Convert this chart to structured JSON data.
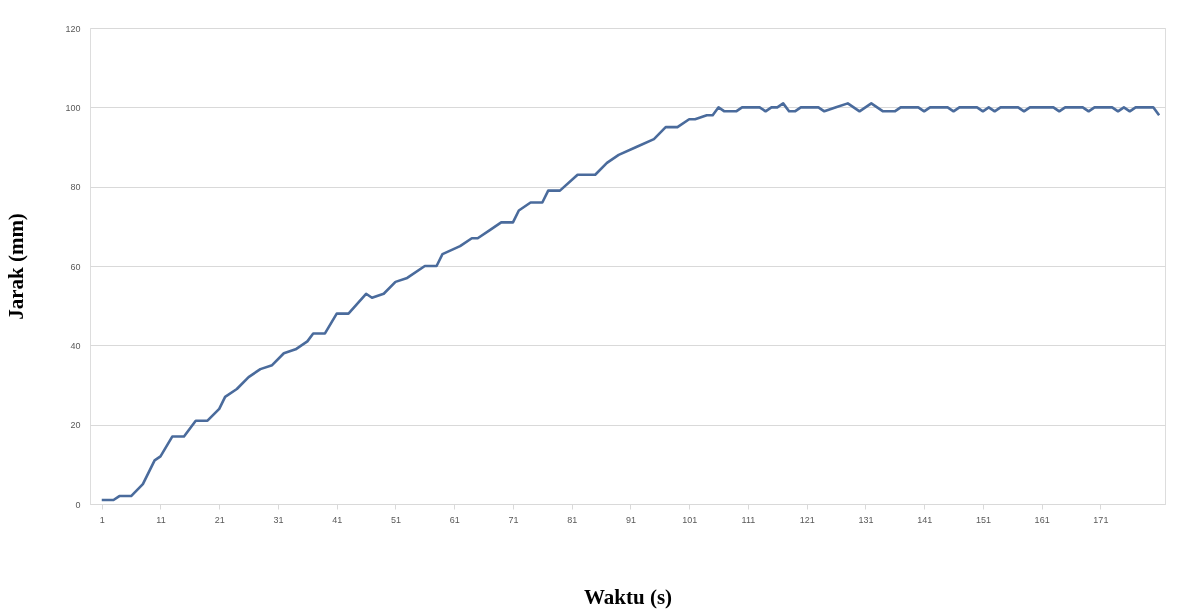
{
  "chart_data": {
    "type": "line",
    "xlabel": "Waktu (s)",
    "ylabel": "Jarak (mm)",
    "x": [
      1,
      3,
      4,
      6,
      8,
      10,
      11,
      13,
      15,
      17,
      19,
      21,
      22,
      24,
      26,
      28,
      30,
      32,
      34,
      36,
      37,
      39,
      41,
      43,
      46,
      47,
      49,
      51,
      53,
      56,
      58,
      59,
      62,
      64,
      65,
      67,
      69,
      71,
      72,
      74,
      76,
      77,
      79,
      82,
      85,
      87,
      89,
      92,
      95,
      97,
      99,
      101,
      102,
      104,
      105,
      106,
      107,
      109,
      110,
      113,
      114,
      115,
      116,
      117,
      118,
      119,
      120,
      123,
      124,
      126,
      128,
      130,
      132,
      134,
      136,
      137,
      140,
      141,
      142,
      145,
      146,
      147,
      150,
      151,
      152,
      153,
      154,
      157,
      158,
      159,
      163,
      164,
      165,
      168,
      169,
      170,
      173,
      174,
      175,
      176,
      177,
      180,
      181
    ],
    "series": [
      {
        "color": "#4a6b9c",
        "values": [
          1,
          1,
          2,
          2,
          5,
          11,
          12,
          17,
          17,
          21,
          21,
          24,
          27,
          29,
          32,
          34,
          35,
          38,
          39,
          41,
          43,
          43,
          48,
          48,
          53,
          52,
          53,
          56,
          57,
          60,
          60,
          63,
          65,
          67,
          67,
          69,
          71,
          71,
          74,
          76,
          76,
          79,
          79,
          83,
          83,
          86,
          88,
          90,
          92,
          95,
          95,
          97,
          97,
          98,
          98,
          100,
          99,
          99,
          100,
          100,
          99,
          100,
          100,
          101,
          99,
          99,
          100,
          100,
          99,
          100,
          101,
          99,
          101,
          99,
          99,
          100,
          100,
          99,
          100,
          100,
          99,
          100,
          100,
          99,
          100,
          99,
          100,
          100,
          99,
          100,
          100,
          99,
          100,
          100,
          99,
          100,
          100,
          99,
          100,
          99,
          100,
          100,
          98
        ]
      }
    ],
    "xlim": [
      -1,
      182
    ],
    "xticks": [
      1,
      11,
      21,
      31,
      41,
      51,
      61,
      71,
      81,
      91,
      101,
      111,
      121,
      131,
      141,
      151,
      161,
      171
    ],
    "ylim": [
      0,
      120
    ],
    "yticks": [
      0,
      20,
      40,
      60,
      80,
      100,
      120
    ],
    "grid": "y",
    "legend": false,
    "marker": "none",
    "line_style": "solid"
  }
}
